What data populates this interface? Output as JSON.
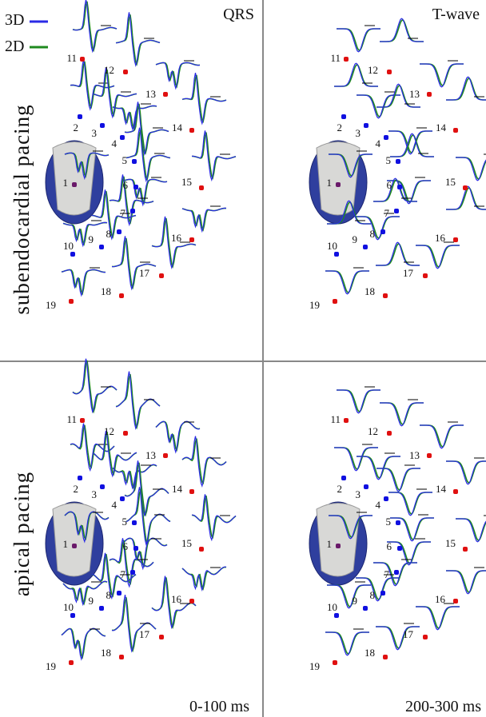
{
  "legend": [
    {
      "label": "3D",
      "color": "#2a2ae6"
    },
    {
      "label": "2D",
      "color": "#1f8a1f"
    }
  ],
  "columns": [
    "QRS",
    "T-wave"
  ],
  "rows": [
    "subendocardial pacing",
    "apical pacing"
  ],
  "time_windows": [
    "0-100 ms",
    "200-300 ms"
  ],
  "electrodes": [
    "1",
    "2",
    "3",
    "4",
    "5",
    "6",
    "7",
    "8",
    "9",
    "10",
    "11",
    "12",
    "13",
    "14",
    "15",
    "16",
    "17",
    "18",
    "19"
  ]
}
